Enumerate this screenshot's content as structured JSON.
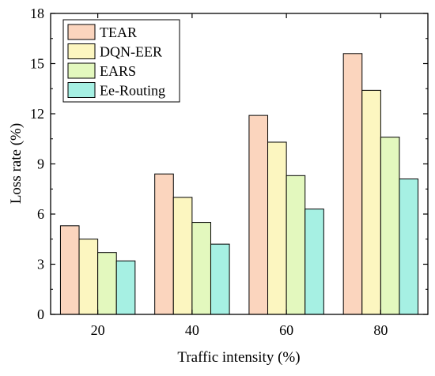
{
  "chart_data": {
    "type": "bar",
    "title": "",
    "xlabel": "Traffic intensity (%)",
    "ylabel": "Loss rate (%)",
    "categories": [
      "20",
      "40",
      "60",
      "80"
    ],
    "ylim": [
      0,
      18
    ],
    "yticks": [
      0,
      3,
      6,
      9,
      12,
      15,
      18
    ],
    "legend_position": "top-left",
    "grid": false,
    "series": [
      {
        "name": "TEAR",
        "values": [
          5.3,
          8.4,
          11.9,
          15.6
        ],
        "color": "#FBD5BE"
      },
      {
        "name": "DQN-EER",
        "values": [
          4.5,
          7.0,
          10.3,
          13.4
        ],
        "color": "#FCF6C0"
      },
      {
        "name": "EARS",
        "values": [
          3.7,
          5.5,
          8.3,
          10.6
        ],
        "color": "#E3F8BE"
      },
      {
        "name": "Ee-Routing",
        "values": [
          3.2,
          4.2,
          6.3,
          8.1
        ],
        "color": "#A6F0E3"
      }
    ]
  }
}
